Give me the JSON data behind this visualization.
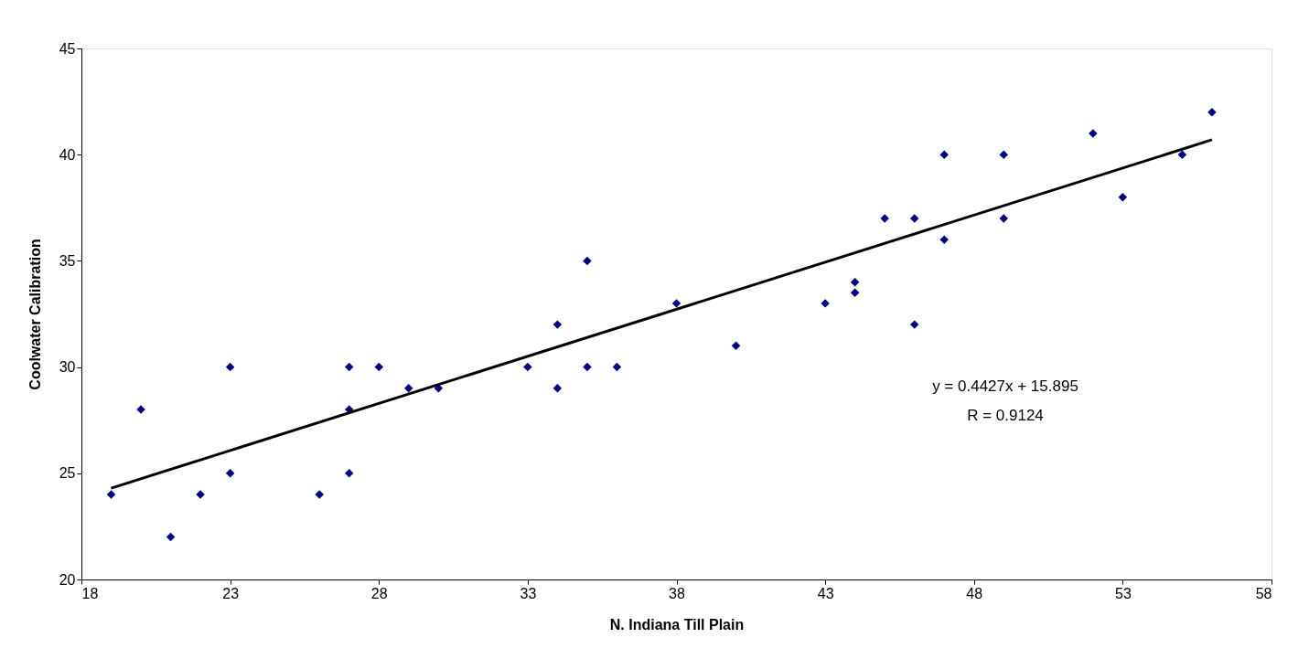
{
  "chart_data": {
    "type": "scatter",
    "xlabel": "N. Indiana Till Plain",
    "ylabel": "Coolwater Calibration",
    "xlim": [
      18,
      58
    ],
    "xticks": [
      18,
      23,
      28,
      33,
      38,
      43,
      48,
      53,
      58
    ],
    "ylim": [
      20,
      45
    ],
    "yticks": [
      20,
      25,
      30,
      35,
      40,
      45
    ],
    "grid": false,
    "legend": false,
    "marker": "diamond",
    "series": [
      {
        "type": "scatter",
        "color": "#000080",
        "x": [
          19,
          20,
          21,
          22,
          23,
          23,
          26,
          27,
          27,
          27,
          28,
          29,
          30,
          33,
          34,
          34,
          35,
          35,
          36,
          38,
          40,
          43,
          44,
          44,
          45,
          46,
          46,
          47,
          47,
          49,
          49,
          52,
          53,
          55,
          56
        ],
        "values": [
          24,
          28,
          22,
          24,
          30,
          25,
          24,
          30,
          28,
          25,
          30,
          29,
          29,
          30,
          32,
          29,
          35,
          30,
          30,
          33,
          31,
          33,
          34,
          33.5,
          37,
          37,
          32,
          40,
          36,
          40,
          37,
          41,
          38,
          40,
          42
        ]
      },
      {
        "type": "line",
        "color": "#000000",
        "marker": "none",
        "line_style": "solid",
        "x": [
          19,
          56
        ],
        "values": [
          24.3,
          40.7
        ]
      }
    ],
    "annotations": [
      "y = 0.4427x + 15.895",
      "R = 0.9124"
    ]
  }
}
